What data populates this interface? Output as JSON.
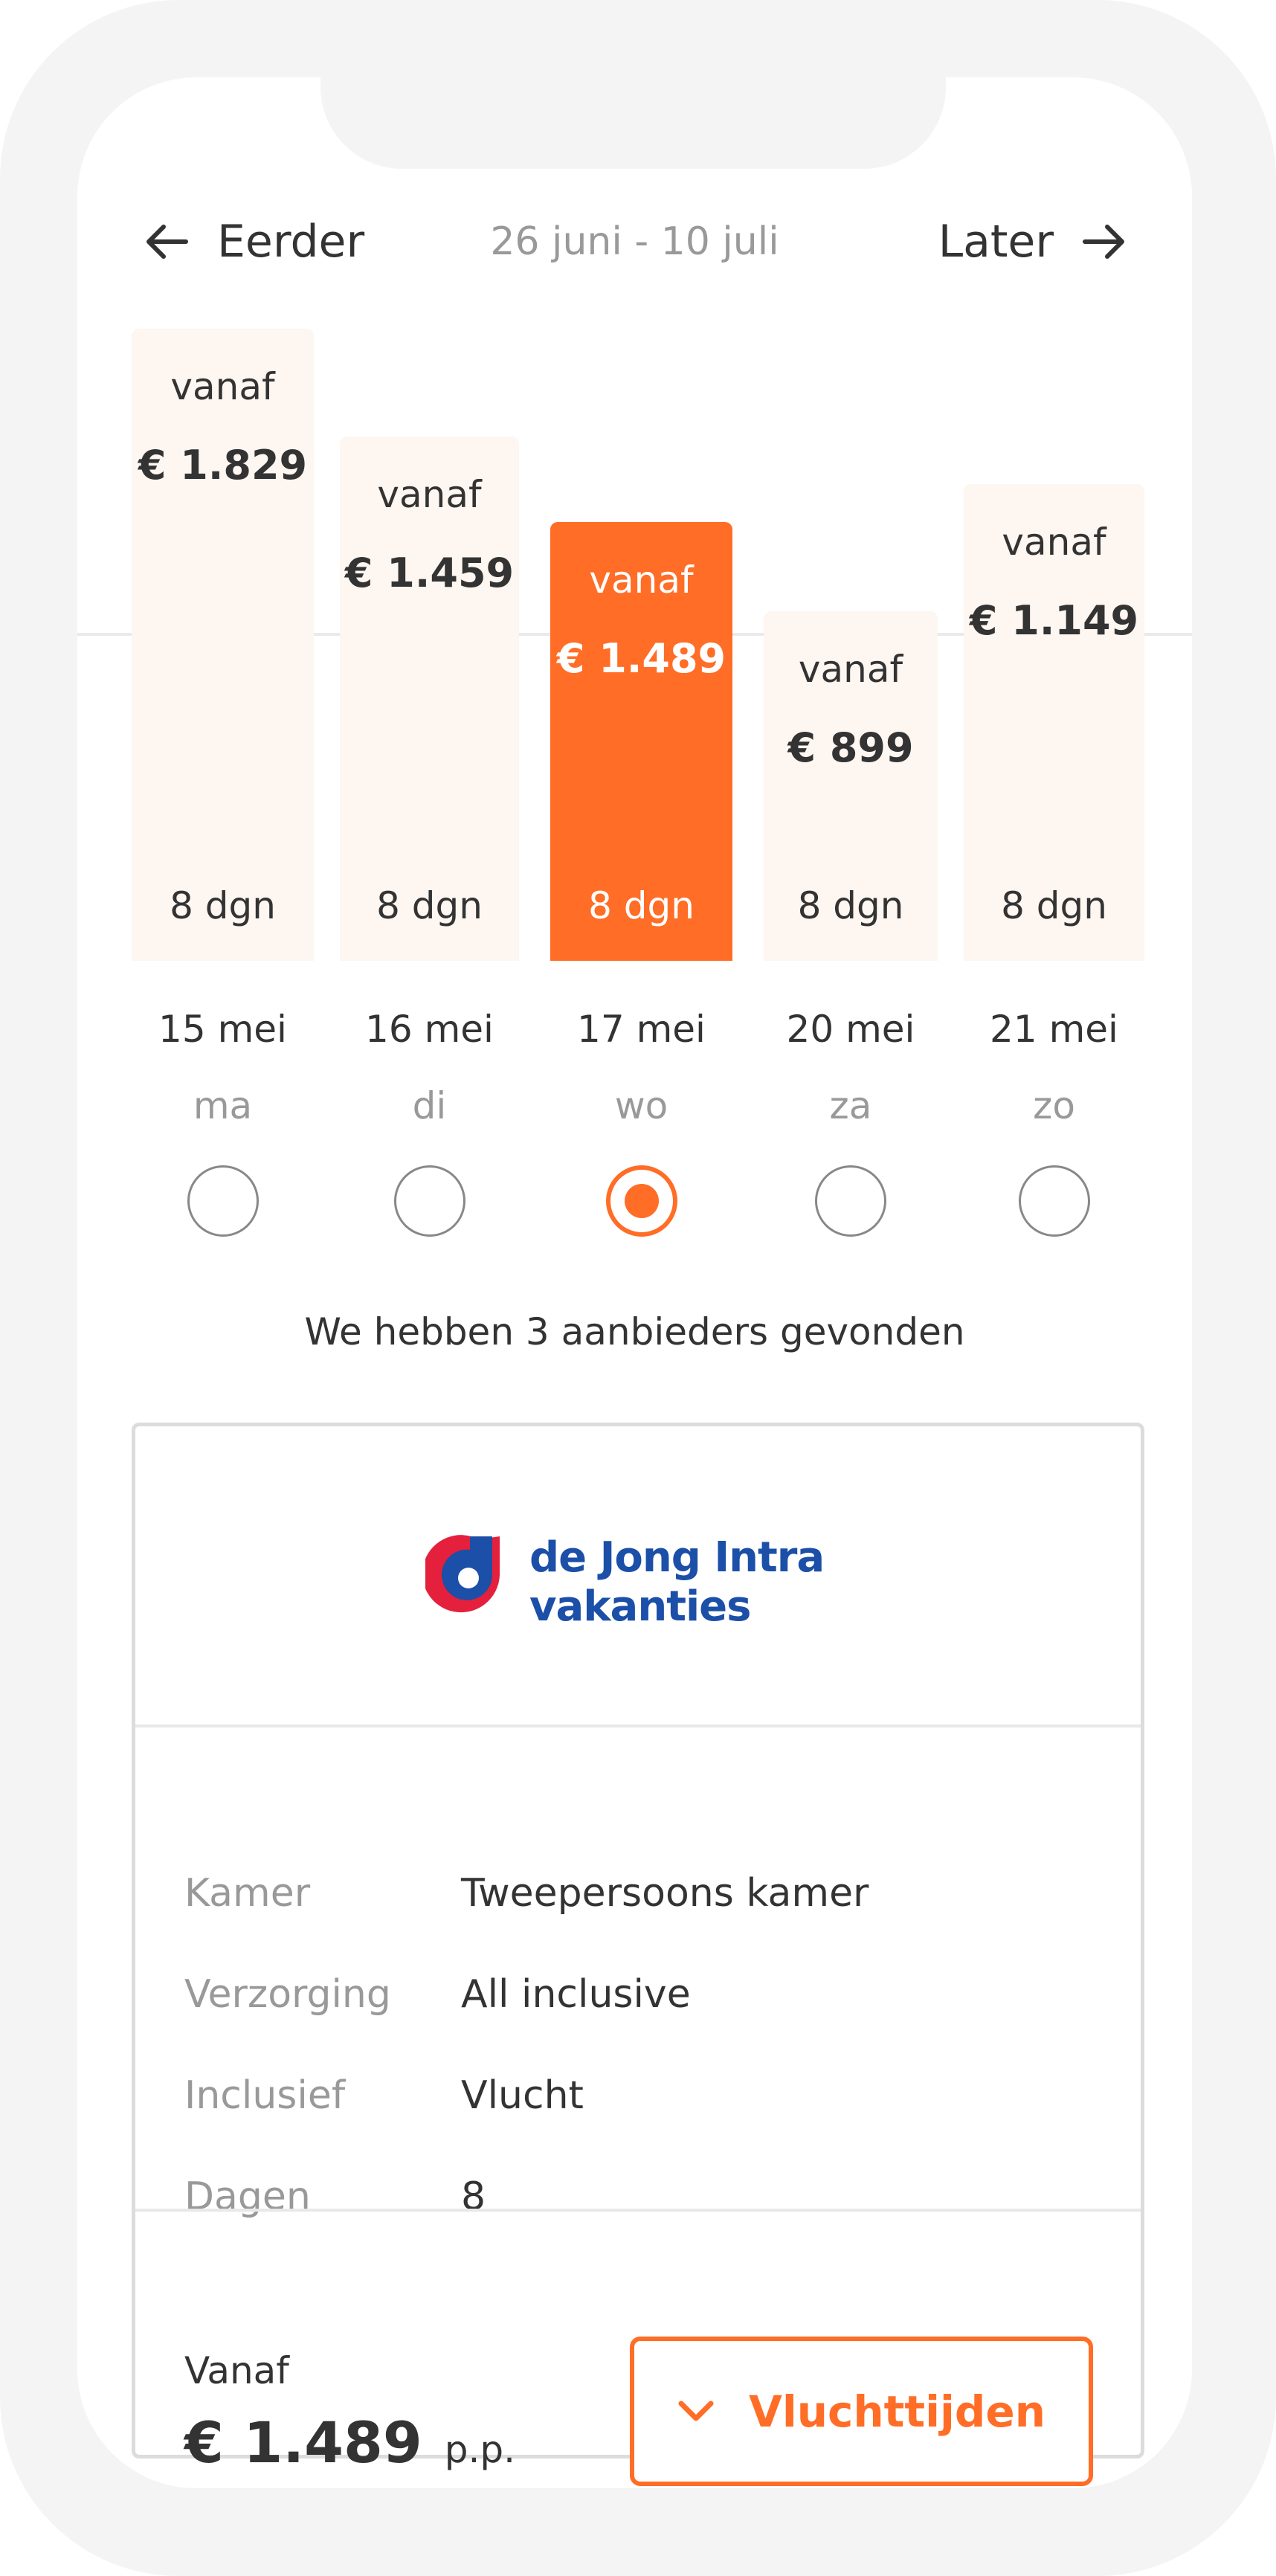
{
  "nav": {
    "prev_label": "Eerder",
    "next_label": "Later",
    "date_range": "26 juni - 10 juli",
    "prev_icon": "arrow-left-icon",
    "next_icon": "arrow-right-icon"
  },
  "accent_color": "#ff6d26",
  "options": [
    {
      "from_label": "vanaf",
      "price": "€ 1.829",
      "duration": "8 dgn",
      "date": "15 mei",
      "weekday": "ma",
      "selected": false
    },
    {
      "from_label": "vanaf",
      "price": "€ 1.459",
      "duration": "8 dgn",
      "date": "16 mei",
      "weekday": "di",
      "selected": false
    },
    {
      "from_label": "vanaf",
      "price": "€ 1.489",
      "duration": "8 dgn",
      "date": "17 mei",
      "weekday": "wo",
      "selected": true
    },
    {
      "from_label": "vanaf",
      "price": "€ 899",
      "duration": "8 dgn",
      "date": "20 mei",
      "weekday": "za",
      "selected": false
    },
    {
      "from_label": "vanaf",
      "price": "€ 1.149",
      "duration": "8 dgn",
      "date": "21 mei",
      "weekday": "zo",
      "selected": false
    }
  ],
  "results_text": "We hebben 3 aanbieders gevonden",
  "offer": {
    "provider_logo_text": "de Jong Intra vakanties",
    "provider_line1": "de Jong Intra",
    "provider_line2": "vakanties",
    "details": [
      {
        "label": "Kamer",
        "value": "Tweepersoons kamer"
      },
      {
        "label": "Verzorging",
        "value": "All inclusive"
      },
      {
        "label": "Inclusief",
        "value": "Vlucht"
      },
      {
        "label": "Dagen",
        "value": "8"
      }
    ],
    "from_label": "Vanaf",
    "price": "€ 1.489",
    "per_person": "p.p.",
    "flight_times_button": "Vluchttijden",
    "button_icon": "chevron-down-icon"
  }
}
